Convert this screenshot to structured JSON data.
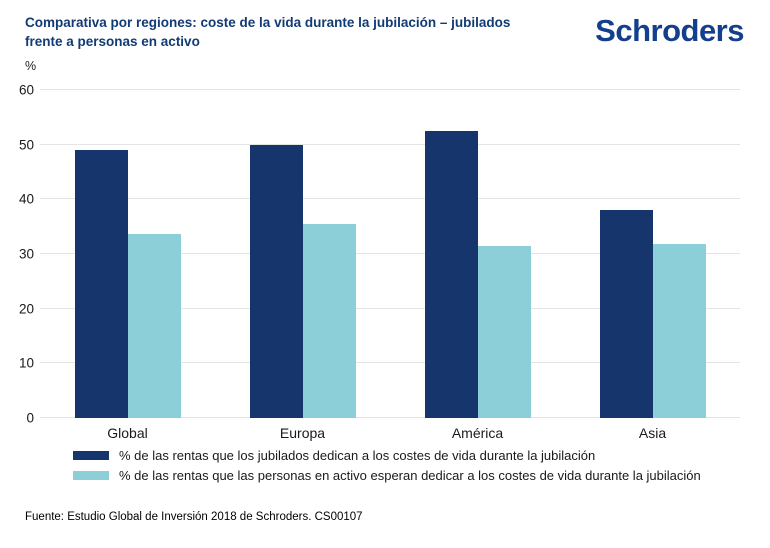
{
  "header": {
    "title_line1": "Comparativa por regiones: coste de la vida durante la jubilación – jubilados",
    "title_line2": "frente a personas en activo",
    "logo_text": "Schroders",
    "logo_color": "#143f8c",
    "title_color": "#123a75"
  },
  "chart_data": {
    "type": "bar",
    "title": "Comparativa por regiones: coste de la vida durante la jubilación – jubilados frente a personas en activo",
    "unit_label": "%",
    "categories": [
      "Global",
      "Europa",
      "América",
      "Asia"
    ],
    "series": [
      {
        "name": "% de las rentas que los jubilados dedican a los costes de vida durante la jubilación",
        "color": "#16356d",
        "values": [
          49,
          50,
          52.5,
          38
        ]
      },
      {
        "name": "% de las rentas que las personas en activo esperan dedicar a los costes de vida durante la jubilación",
        "color": "#8ccfd8",
        "values": [
          33.7,
          35.4,
          31.5,
          31.8
        ]
      }
    ],
    "xlabel": "",
    "ylabel": "%",
    "ylim": [
      0,
      60
    ],
    "yticks": [
      0,
      10,
      20,
      30,
      40,
      50,
      60
    ],
    "grid": true,
    "legend_position": "bottom"
  },
  "footer": {
    "source": "Fuente: Estudio Global de Inversión 2018 de Schroders. CS00107"
  }
}
